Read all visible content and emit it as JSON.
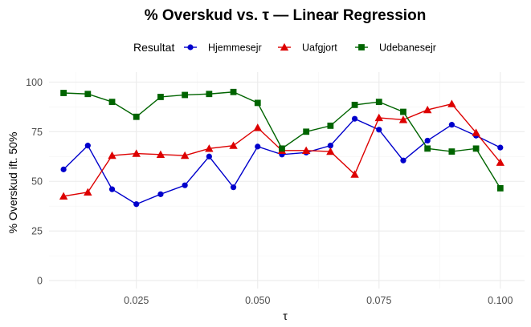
{
  "chart_data": {
    "type": "line",
    "title": "% Overskud vs. τ — Linear Regression",
    "xlabel": "τ",
    "ylabel": "% Overskud ift. 50%",
    "xlim": [
      0.007,
      0.105
    ],
    "ylim": [
      -4,
      105
    ],
    "x_ticks": [
      0.025,
      0.05,
      0.075,
      0.1
    ],
    "x_tick_labels": [
      "0.025",
      "0.050",
      "0.075",
      "0.100"
    ],
    "y_ticks": [
      0,
      25,
      50,
      75,
      100
    ],
    "y_tick_labels": [
      "0",
      "25",
      "50",
      "75",
      "100"
    ],
    "grid": true,
    "legend": {
      "title": "Resultat",
      "position": "top"
    },
    "x": [
      0.01,
      0.015,
      0.02,
      0.025,
      0.03,
      0.035,
      0.04,
      0.045,
      0.05,
      0.055,
      0.06,
      0.065,
      0.07,
      0.075,
      0.08,
      0.085,
      0.09,
      0.095,
      0.1
    ],
    "series": [
      {
        "name": "Hjemmesejr",
        "color": "#0000cc",
        "marker": "circle",
        "values": [
          56,
          68,
          46,
          38.5,
          43.5,
          48,
          62.5,
          47,
          67.5,
          63.5,
          64.5,
          68,
          81.5,
          76,
          60.5,
          70.5,
          78.5,
          73,
          67
        ]
      },
      {
        "name": "Uafgjort",
        "color": "#dd0000",
        "marker": "triangle",
        "values": [
          42.5,
          44.5,
          63,
          64,
          63.5,
          63,
          66.5,
          68,
          77,
          65.5,
          65.5,
          65,
          53.5,
          82,
          81,
          86,
          89,
          74.5,
          59.5
        ]
      },
      {
        "name": "Udebanesejr",
        "color": "#006400",
        "marker": "square",
        "values": [
          94.5,
          94,
          90,
          82.5,
          92.5,
          93.5,
          94,
          95,
          89.5,
          66.5,
          75,
          78,
          88.5,
          90,
          85,
          66.5,
          65,
          66.5,
          46.5
        ]
      }
    ]
  }
}
